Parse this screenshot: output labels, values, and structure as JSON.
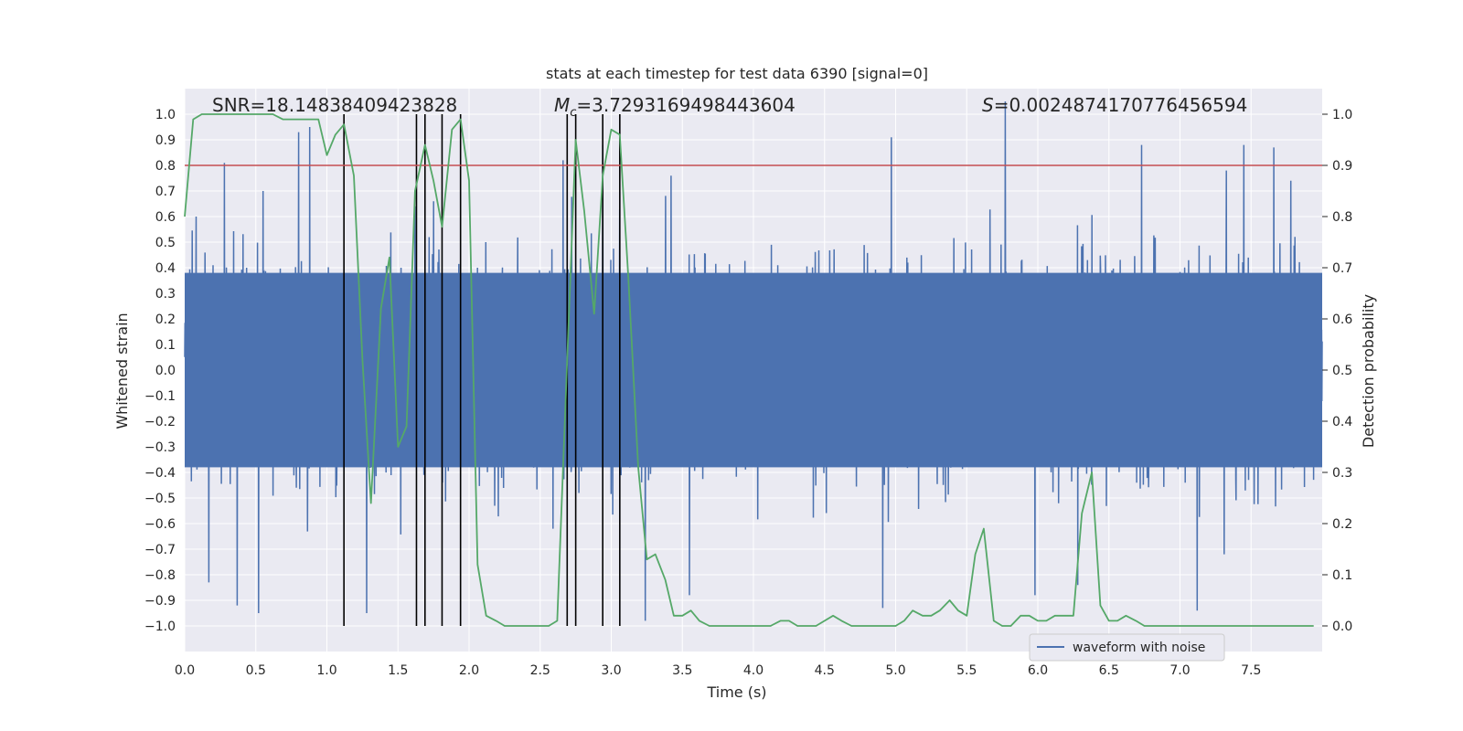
{
  "chart_data": {
    "type": "line",
    "title": "stats at each timestep for test data 6390 [signal=0]",
    "xlabel": "Time (s)",
    "ylabel": "Whitened strain",
    "ylabel_right": "Detection probability",
    "xlim": [
      0.0,
      8.0
    ],
    "ylim": [
      -1.1,
      1.1
    ],
    "ylim_right": [
      -0.05,
      1.05
    ],
    "x_ticks": [
      0.0,
      0.5,
      1.0,
      1.5,
      2.0,
      2.5,
      3.0,
      3.5,
      4.0,
      4.5,
      5.0,
      5.5,
      6.0,
      6.5,
      7.0,
      7.5
    ],
    "x_tick_labels": [
      "0.0",
      "0.5",
      "1.0",
      "1.5",
      "2.0",
      "2.5",
      "3.0",
      "3.5",
      "4.0",
      "4.5",
      "5.0",
      "5.5",
      "6.0",
      "6.5",
      "7.0",
      "7.5"
    ],
    "y_ticks": [
      1.0,
      0.9,
      0.8,
      0.7,
      0.6,
      0.5,
      0.4,
      0.3,
      0.2,
      0.1,
      0.0,
      -0.1,
      -0.2,
      -0.3,
      -0.4,
      -0.5,
      -0.6,
      -0.7,
      -0.8,
      -0.9,
      -1.0
    ],
    "y_tick_labels": [
      "1.0",
      "0.9",
      "0.8",
      "0.7",
      "0.6",
      "0.5",
      "0.4",
      "0.3",
      "0.2",
      "0.1",
      "0.0",
      "−0.1",
      "−0.2",
      "−0.3",
      "−0.4",
      "−0.5",
      "−0.6",
      "−0.7",
      "−0.8",
      "−0.9",
      "−1.0"
    ],
    "y_ticks_right": [
      1.0,
      0.9,
      0.8,
      0.7,
      0.6,
      0.5,
      0.4,
      0.3,
      0.2,
      0.1,
      0.0
    ],
    "y_tick_labels_right": [
      "1.0",
      "0.9",
      "0.8",
      "0.7",
      "0.6",
      "0.5",
      "0.4",
      "0.3",
      "0.2",
      "0.1",
      "0.0"
    ],
    "annotations": {
      "snr": "SNR=18.14838409423828",
      "mc_symbol": "M",
      "mc_sub": "c",
      "mc_value": "=3.7293169498443604",
      "s_symbol": "S",
      "s_value": "=0.0024874170776456594"
    },
    "threshold_y": 0.9,
    "vertical_lines_x": [
      1.12,
      1.63,
      1.69,
      1.81,
      1.94,
      2.69,
      2.75,
      2.94,
      3.06
    ],
    "series": [
      {
        "name": "waveform with noise",
        "color": "#4c72b0",
        "axis": "left",
        "description": "whitened strain noise, 4096 samples",
        "n_samples": 4096,
        "core_amplitude": 0.38,
        "spikes": [
          [
            0.08,
            0.6
          ],
          [
            0.28,
            0.81
          ],
          [
            0.55,
            0.7
          ],
          [
            0.8,
            0.93
          ],
          [
            0.88,
            0.95
          ],
          [
            1.62,
            0.64
          ],
          [
            1.75,
            0.66
          ],
          [
            2.66,
            0.82
          ],
          [
            2.94,
            0.88
          ],
          [
            3.42,
            0.76
          ],
          [
            4.97,
            0.91
          ],
          [
            5.77,
            1.05
          ],
          [
            6.73,
            0.88
          ],
          [
            7.45,
            0.88
          ],
          [
            7.66,
            0.87
          ],
          [
            7.78,
            0.74
          ],
          [
            0.37,
            -0.92
          ],
          [
            0.52,
            -0.95
          ],
          [
            0.17,
            -0.83
          ],
          [
            1.28,
            -0.95
          ],
          [
            2.59,
            -0.62
          ],
          [
            3.24,
            -0.98
          ],
          [
            3.55,
            -0.88
          ],
          [
            4.91,
            -0.93
          ],
          [
            5.98,
            -0.88
          ],
          [
            6.28,
            -0.84
          ],
          [
            7.12,
            -0.94
          ],
          [
            7.31,
            -0.72
          ]
        ]
      },
      {
        "name": "detection probability",
        "color": "#55a868",
        "axis": "right",
        "x": [
          0.0,
          0.06,
          0.12,
          0.19,
          0.25,
          0.31,
          0.38,
          0.44,
          0.5,
          0.56,
          0.62,
          0.69,
          0.75,
          0.81,
          0.88,
          0.94,
          1.0,
          1.06,
          1.12,
          1.19,
          1.25,
          1.31,
          1.38,
          1.44,
          1.5,
          1.56,
          1.62,
          1.69,
          1.75,
          1.81,
          1.88,
          1.94,
          2.0,
          2.06,
          2.12,
          2.19,
          2.25,
          2.31,
          2.38,
          2.44,
          2.5,
          2.56,
          2.62,
          2.69,
          2.75,
          2.81,
          2.88,
          2.94,
          3.0,
          3.06,
          3.12,
          3.19,
          3.25,
          3.31,
          3.38,
          3.44,
          3.5,
          3.56,
          3.62,
          3.69,
          3.75,
          3.81,
          3.88,
          3.94,
          4.0,
          4.06,
          4.12,
          4.19,
          4.25,
          4.31,
          4.38,
          4.44,
          4.5,
          4.56,
          4.62,
          4.69,
          4.75,
          4.81,
          4.88,
          4.94,
          5.0,
          5.06,
          5.12,
          5.19,
          5.25,
          5.31,
          5.38,
          5.44,
          5.5,
          5.56,
          5.62,
          5.69,
          5.75,
          5.81,
          5.88,
          5.94,
          6.0,
          6.06,
          6.12,
          6.19,
          6.25,
          6.31,
          6.38,
          6.44,
          6.5,
          6.56,
          6.62,
          6.69,
          6.75,
          6.81,
          6.88,
          6.94,
          7.0,
          7.06,
          7.12,
          7.19,
          7.25,
          7.31,
          7.38,
          7.44,
          7.5,
          7.56,
          7.62,
          7.69,
          7.75,
          7.81,
          7.88,
          7.94
        ],
        "values": [
          0.8,
          0.99,
          1.0,
          1.0,
          1.0,
          1.0,
          1.0,
          1.0,
          1.0,
          1.0,
          1.0,
          0.99,
          0.99,
          0.99,
          0.99,
          0.99,
          0.92,
          0.96,
          0.98,
          0.88,
          0.52,
          0.24,
          0.62,
          0.72,
          0.35,
          0.39,
          0.85,
          0.94,
          0.87,
          0.78,
          0.97,
          0.99,
          0.87,
          0.12,
          0.02,
          0.01,
          0.0,
          0.0,
          0.0,
          0.0,
          0.0,
          0.0,
          0.01,
          0.52,
          0.95,
          0.81,
          0.61,
          0.88,
          0.97,
          0.96,
          0.68,
          0.31,
          0.13,
          0.14,
          0.09,
          0.02,
          0.02,
          0.03,
          0.01,
          0.0,
          0.0,
          0.0,
          0.0,
          0.0,
          0.0,
          0.0,
          0.0,
          0.01,
          0.01,
          0.0,
          0.0,
          0.0,
          0.01,
          0.02,
          0.01,
          0.0,
          0.0,
          0.0,
          0.0,
          0.0,
          0.0,
          0.01,
          0.03,
          0.02,
          0.02,
          0.03,
          0.05,
          0.03,
          0.02,
          0.14,
          0.19,
          0.01,
          0.0,
          0.0,
          0.02,
          0.02,
          0.01,
          0.01,
          0.02,
          0.02,
          0.02,
          0.22,
          0.3,
          0.04,
          0.01,
          0.01,
          0.02,
          0.01,
          0.0,
          0.0,
          0.0,
          0.0,
          0.0,
          0.0,
          0.0,
          0.0,
          0.0,
          0.0,
          0.0,
          0.0,
          0.0,
          0.0,
          0.0,
          0.0,
          0.0,
          0.0,
          0.0,
          0.0
        ]
      }
    ],
    "legend": {
      "position": "lower-right",
      "label": "waveform with noise"
    },
    "colors": {
      "background": "#eaeaf2",
      "grid": "#ffffff",
      "threshold": "#c44e52",
      "vlines": "#000000",
      "strain": "#4c72b0",
      "prob": "#55a868"
    }
  }
}
